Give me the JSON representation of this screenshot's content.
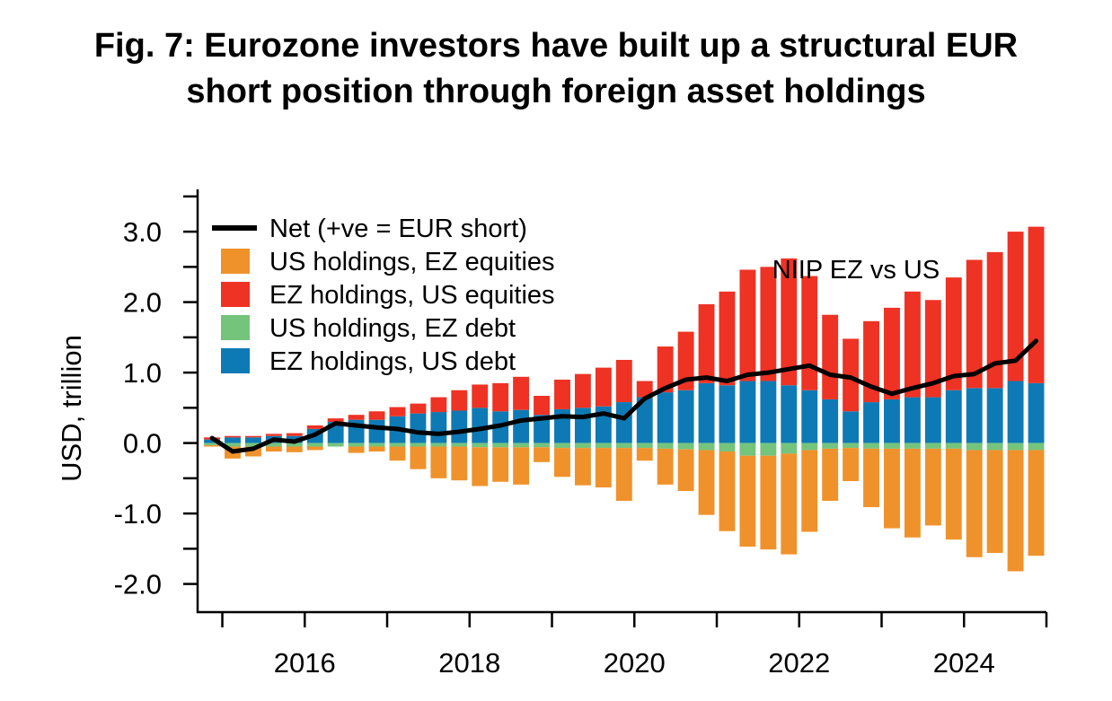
{
  "title_line1": "Fig. 7: Eurozone investors have built up a structural EUR",
  "title_line2": "short position through foreign asset holdings",
  "chart_data": {
    "type": "bar",
    "stacked": true,
    "annotation": "NIIP EZ vs US",
    "ylabel": "USD, trillion",
    "xlabel": "",
    "ylim": [
      -2.4,
      3.6
    ],
    "xlim": [
      2014.7,
      2025.0
    ],
    "y_ticks": [
      -2.0,
      -1.0,
      0.0,
      1.0,
      2.0,
      3.0
    ],
    "y_tick_labels": [
      "-2.0",
      "-1.0",
      "0.0",
      "1.0",
      "2.0",
      "3.0"
    ],
    "x_ticks": [
      2016,
      2018,
      2020,
      2022,
      2024
    ],
    "x_tick_labels": [
      "2016",
      "2018",
      "2020",
      "2022",
      "2024"
    ],
    "legend_position": "top-left",
    "legend": [
      {
        "label": "Net (+ve = EUR short)",
        "color": "#000000",
        "kind": "line"
      },
      {
        "label": "US holdings, EZ equities",
        "color": "#F0922B",
        "kind": "bar"
      },
      {
        "label": "EZ holdings, US equities",
        "color": "#EE3224",
        "kind": "bar"
      },
      {
        "label": "US holdings, EZ debt",
        "color": "#74C47C",
        "kind": "bar"
      },
      {
        "label": "EZ holdings, US debt",
        "color": "#0E7AB5",
        "kind": "bar"
      }
    ],
    "x": [
      2014.875,
      2015.125,
      2015.375,
      2015.625,
      2015.875,
      2016.125,
      2016.375,
      2016.625,
      2016.875,
      2017.125,
      2017.375,
      2017.625,
      2017.875,
      2018.125,
      2018.375,
      2018.625,
      2018.875,
      2019.125,
      2019.375,
      2019.625,
      2019.875,
      2020.125,
      2020.375,
      2020.625,
      2020.875,
      2021.125,
      2021.375,
      2021.625,
      2021.875,
      2022.125,
      2022.375,
      2022.625,
      2022.875,
      2023.125,
      2023.375,
      2023.625,
      2023.875,
      2024.125,
      2024.375,
      2024.625,
      2024.875
    ],
    "series": [
      {
        "name": "EZ holdings, US debt",
        "color": "#0E7AB5",
        "values": [
          0.05,
          0.08,
          0.08,
          0.1,
          0.1,
          0.2,
          0.3,
          0.33,
          0.33,
          0.38,
          0.42,
          0.44,
          0.46,
          0.5,
          0.45,
          0.47,
          0.4,
          0.48,
          0.5,
          0.52,
          0.58,
          0.65,
          0.72,
          0.75,
          0.85,
          0.82,
          0.88,
          0.88,
          0.82,
          0.75,
          0.62,
          0.45,
          0.58,
          0.62,
          0.65,
          0.65,
          0.75,
          0.78,
          0.78,
          0.88,
          0.85
        ]
      },
      {
        "name": "EZ holdings, US equities",
        "color": "#EE3224",
        "values": [
          0.03,
          0.02,
          0.02,
          0.03,
          0.04,
          0.05,
          0.05,
          0.07,
          0.12,
          0.13,
          0.14,
          0.21,
          0.29,
          0.33,
          0.4,
          0.47,
          0.27,
          0.42,
          0.48,
          0.55,
          0.6,
          0.23,
          0.65,
          0.83,
          1.12,
          1.33,
          1.58,
          1.62,
          1.8,
          1.62,
          1.2,
          1.03,
          1.15,
          1.3,
          1.5,
          1.38,
          1.6,
          1.82,
          1.93,
          2.12,
          2.22
        ]
      },
      {
        "name": "US holdings, EZ debt",
        "color": "#74C47C",
        "values": [
          -0.03,
          -0.05,
          -0.05,
          -0.05,
          -0.05,
          -0.05,
          -0.05,
          -0.05,
          -0.05,
          -0.05,
          -0.05,
          -0.05,
          -0.05,
          -0.06,
          -0.06,
          -0.06,
          -0.06,
          -0.07,
          -0.07,
          -0.07,
          -0.07,
          -0.07,
          -0.08,
          -0.09,
          -0.1,
          -0.12,
          -0.18,
          -0.18,
          -0.15,
          -0.1,
          -0.08,
          -0.07,
          -0.08,
          -0.08,
          -0.08,
          -0.08,
          -0.08,
          -0.1,
          -0.1,
          -0.1,
          -0.1
        ]
      },
      {
        "name": "US holdings, EZ equities",
        "color": "#F0922B",
        "values": [
          -0.02,
          -0.17,
          -0.14,
          -0.07,
          -0.08,
          -0.05,
          0.0,
          -0.09,
          -0.07,
          -0.2,
          -0.32,
          -0.45,
          -0.48,
          -0.55,
          -0.49,
          -0.53,
          -0.21,
          -0.41,
          -0.53,
          -0.56,
          -0.75,
          -0.18,
          -0.51,
          -0.59,
          -0.92,
          -1.13,
          -1.29,
          -1.33,
          -1.43,
          -1.16,
          -0.74,
          -0.47,
          -0.83,
          -1.13,
          -1.26,
          -1.09,
          -1.29,
          -1.52,
          -1.46,
          -1.72,
          -1.5
        ]
      }
    ],
    "net": {
      "name": "Net (+ve = EUR short)",
      "color": "#000000",
      "x": [
        2014.875,
        2015.125,
        2015.375,
        2015.625,
        2015.875,
        2016.125,
        2016.375,
        2016.625,
        2016.875,
        2017.125,
        2017.375,
        2017.625,
        2017.875,
        2018.125,
        2018.375,
        2018.625,
        2018.875,
        2019.125,
        2019.375,
        2019.625,
        2019.875,
        2020.125,
        2020.375,
        2020.625,
        2020.875,
        2021.125,
        2021.375,
        2021.625,
        2021.875,
        2022.125,
        2022.375,
        2022.625,
        2022.875,
        2023.125,
        2023.375,
        2023.625,
        2023.875,
        2024.125,
        2024.375,
        2024.625,
        2024.875
      ],
      "values": [
        0.07,
        -0.12,
        -0.08,
        0.05,
        0.02,
        0.12,
        0.28,
        0.25,
        0.22,
        0.2,
        0.15,
        0.13,
        0.16,
        0.2,
        0.25,
        0.32,
        0.35,
        0.38,
        0.37,
        0.42,
        0.35,
        0.63,
        0.78,
        0.9,
        0.93,
        0.88,
        0.97,
        1.0,
        1.05,
        1.1,
        0.97,
        0.93,
        0.8,
        0.7,
        0.78,
        0.85,
        0.95,
        0.98,
        1.13,
        1.17,
        1.45
      ]
    }
  }
}
